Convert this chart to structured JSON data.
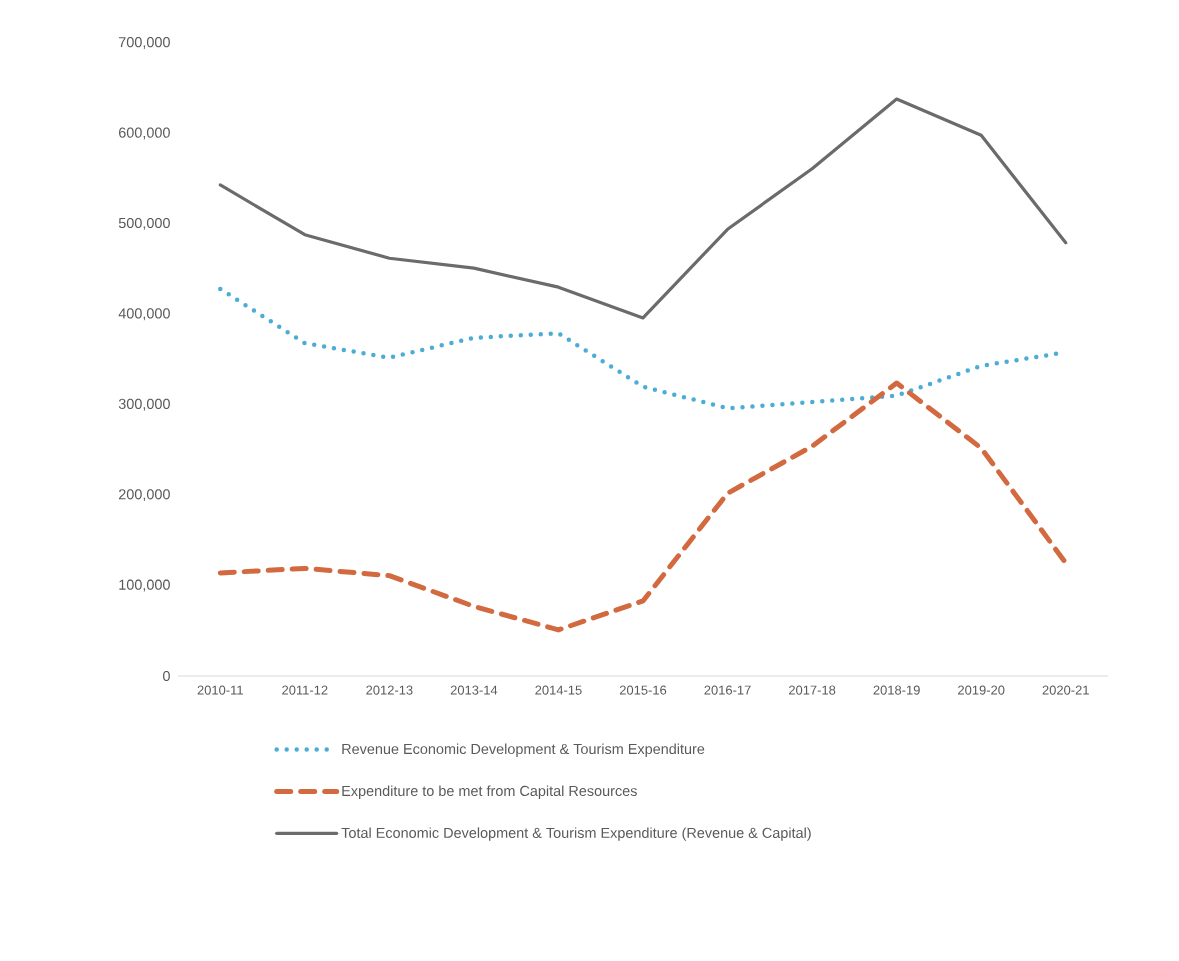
{
  "chart_data": {
    "type": "line",
    "categories": [
      "2010-11",
      "2011-12",
      "2012-13",
      "2013-14",
      "2014-15",
      "2015-16",
      "2016-17",
      "2017-18",
      "2018-19",
      "2019-20",
      "2020-21"
    ],
    "series": [
      {
        "name": "Revenue Economic Development & Tourism Expenditure",
        "color": "#4bacd6",
        "line_style": "dotted",
        "values": [
          428000,
          368000,
          352000,
          374000,
          379000,
          320000,
          296000,
          303000,
          310000,
          343000,
          358000
        ]
      },
      {
        "name": "Expenditure to be met from Capital Resources",
        "color": "#d2693f",
        "line_style": "dashed",
        "values": [
          114000,
          119000,
          111000,
          77000,
          51000,
          83000,
          202000,
          254000,
          324000,
          252000,
          125000
        ]
      },
      {
        "name": "Total Economic Development & Tourism Expenditure (Revenue & Capital)",
        "color": "#6b6b6b",
        "line_style": "solid",
        "values": [
          543000,
          488000,
          462000,
          451000,
          430000,
          396000,
          494000,
          561000,
          638000,
          598000,
          479000
        ]
      }
    ],
    "ylim": [
      0,
      700000
    ],
    "yticks": [
      0,
      {
        "value": 100000,
        "label": "100,000"
      },
      {
        "value": 200000,
        "label": "200,000"
      },
      {
        "value": 300000,
        "label": "300,000"
      },
      {
        "value": 400000,
        "label": "400,000"
      },
      {
        "value": 500000,
        "label": "500,000"
      },
      {
        "value": 600000,
        "label": "600,000"
      },
      {
        "value": 700000,
        "label": "700,000"
      }
    ],
    "grid": false,
    "legend": "bottom",
    "marker": "none"
  }
}
